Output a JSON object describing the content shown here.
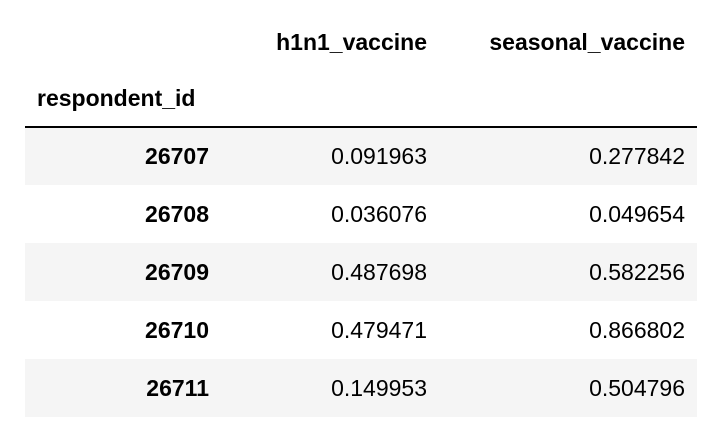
{
  "table": {
    "columns": [
      "h1n1_vaccine",
      "seasonal_vaccine"
    ],
    "index_name": "respondent_id",
    "rows": [
      {
        "id": "26707",
        "h1n1_vaccine": "0.091963",
        "seasonal_vaccine": "0.277842"
      },
      {
        "id": "26708",
        "h1n1_vaccine": "0.036076",
        "seasonal_vaccine": "0.049654"
      },
      {
        "id": "26709",
        "h1n1_vaccine": "0.487698",
        "seasonal_vaccine": "0.582256"
      },
      {
        "id": "26710",
        "h1n1_vaccine": "0.479471",
        "seasonal_vaccine": "0.866802"
      },
      {
        "id": "26711",
        "h1n1_vaccine": "0.149953",
        "seasonal_vaccine": "0.504796"
      }
    ]
  },
  "colors": {
    "stripe": "#f5f5f5",
    "header_rule": "#000000",
    "text": "#000000"
  }
}
